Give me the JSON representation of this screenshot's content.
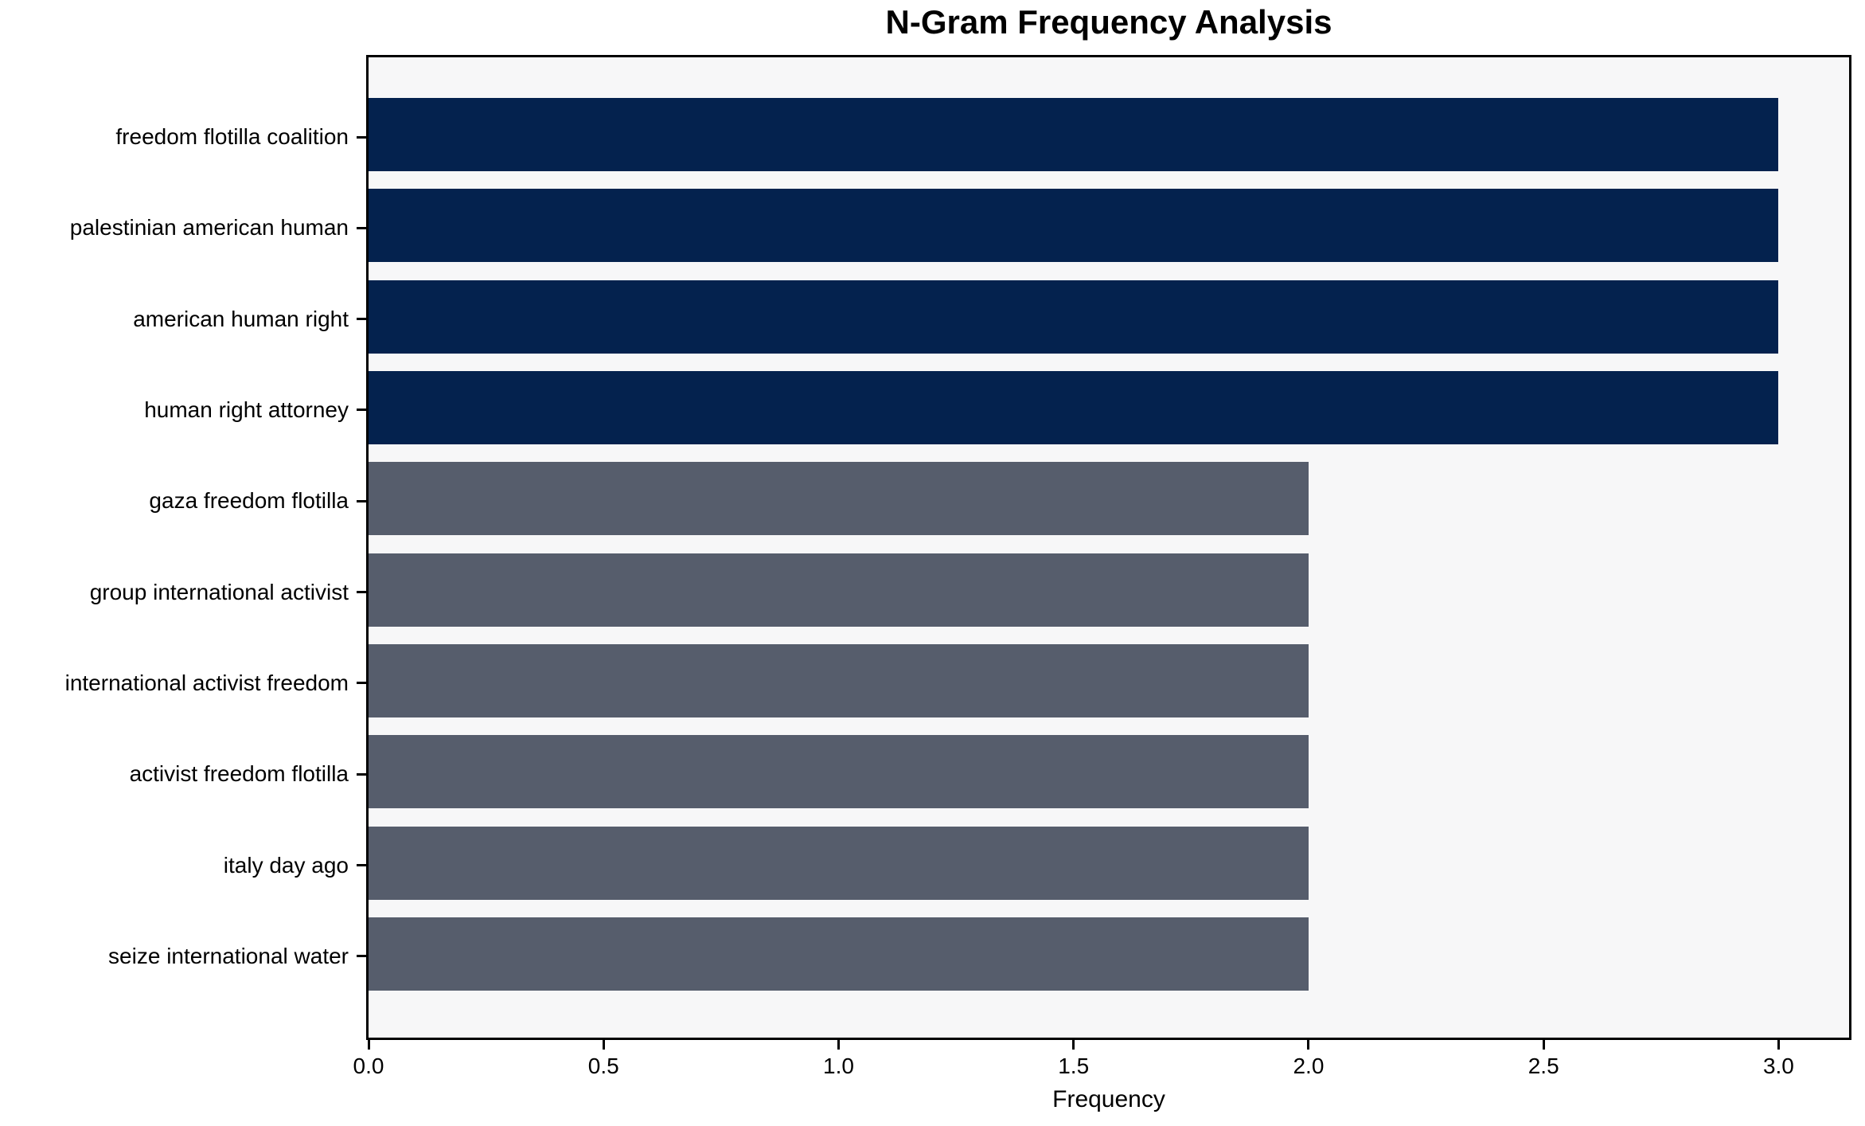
{
  "chart_data": {
    "type": "bar",
    "orientation": "horizontal",
    "title": "N-Gram Frequency Analysis",
    "xlabel": "Frequency",
    "ylabel": "",
    "categories": [
      "freedom flotilla coalition",
      "palestinian american human",
      "american human right",
      "human right attorney",
      "gaza freedom flotilla",
      "group international activist",
      "international activist freedom",
      "activist freedom flotilla",
      "italy day ago",
      "seize international water"
    ],
    "values": [
      3,
      3,
      3,
      3,
      2,
      2,
      2,
      2,
      2,
      2
    ],
    "bar_colors": [
      "#04224e",
      "#04224e",
      "#04224e",
      "#04224e",
      "#565d6c",
      "#565d6c",
      "#565d6c",
      "#565d6c",
      "#565d6c",
      "#565d6c"
    ],
    "x_ticks": [
      0.0,
      0.5,
      1.0,
      1.5,
      2.0,
      2.5,
      3.0
    ],
    "x_tick_labels": [
      "0.0",
      "0.5",
      "1.0",
      "1.5",
      "2.0",
      "2.5",
      "3.0"
    ],
    "xlim": [
      0,
      3.15
    ],
    "grid": false,
    "legend_position": "none",
    "colors": {
      "high_freq_bar": "#04224e",
      "low_freq_bar": "#565d6c",
      "plot_background": "#f7f7f8",
      "figure_background": "#ffffff",
      "axis": "#000000",
      "text": "#000000"
    }
  }
}
